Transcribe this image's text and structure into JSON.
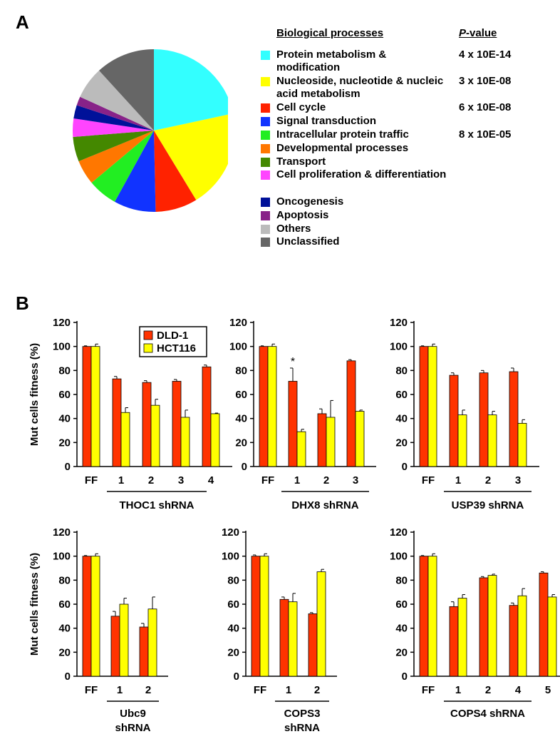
{
  "panel_labels": {
    "a": "A",
    "b": "B"
  },
  "colors": {
    "dld1": "#ff3300",
    "hct116": "#ffff00",
    "axis": "#000000"
  },
  "legend": {
    "header_process": "Biological processes",
    "header_pvalue_italic": "P",
    "header_pvalue_rest": "-value",
    "items": [
      {
        "label": "Protein metabolism & modification",
        "pvalue": "4 x 10E-14",
        "color": "#33ffff"
      },
      {
        "label": "Nucleoside, nucleotide & nucleic acid metabolism",
        "pvalue": "3 x 10E-08",
        "color": "#ffff00"
      },
      {
        "label": "Cell cycle",
        "pvalue": "6 x 10E-08",
        "color": "#ff2200"
      },
      {
        "label": "Signal transduction",
        "pvalue": "",
        "color": "#1133ff"
      },
      {
        "label": "Intracellular protein traffic",
        "pvalue": "8 x 10E-05",
        "color": "#22ee22"
      },
      {
        "label": "Developmental processes",
        "pvalue": "",
        "color": "#ff7700"
      },
      {
        "label": "Transport",
        "pvalue": "",
        "color": "#448800"
      },
      {
        "label": "Cell proliferation & differentiation",
        "pvalue": "",
        "color": "#ff44ff"
      },
      {
        "label": "Oncogenesis",
        "pvalue": "",
        "color": "#001199"
      },
      {
        "label": "Apoptosis",
        "pvalue": "",
        "color": "#882288"
      },
      {
        "label": "Others",
        "pvalue": "",
        "color": "#bbbbbb"
      },
      {
        "label": "Unclassified",
        "pvalue": "",
        "color": "#666666"
      }
    ]
  },
  "bar_legend": {
    "dld1": "DLD-1",
    "hct116": "HCT116"
  },
  "chart_data": [
    {
      "type": "pie",
      "categories": [
        "Protein metabolism & modification",
        "Nucleoside, nucleotide & nucleic acid metabolism",
        "Cell cycle",
        "Signal transduction",
        "Intracellular protein traffic",
        "Developmental processes",
        "Transport",
        "Cell proliferation & differentiation",
        "Oncogenesis",
        "Apoptosis",
        "Others",
        "Unclassified"
      ],
      "values": [
        22,
        20,
        8.5,
        8.5,
        6,
        5,
        5,
        3.7,
        2.7,
        1.8,
        6.5,
        12
      ]
    },
    {
      "type": "bar",
      "ylabel": "Mut cells fitness (%)",
      "ylim": [
        0,
        120
      ],
      "yticks": [
        0,
        20,
        40,
        60,
        80,
        100,
        120
      ],
      "legend_position": "top-left",
      "categories": [
        "FF",
        "1",
        "2",
        "3",
        "4"
      ],
      "group_label": "THOC1 shRNA",
      "series": [
        {
          "name": "DLD-1",
          "values": [
            100,
            73,
            70,
            71,
            83
          ],
          "errors": [
            0.5,
            2,
            1.5,
            1.5,
            1.5
          ]
        },
        {
          "name": "HCT116",
          "values": [
            100,
            45,
            51,
            41,
            44
          ],
          "errors": [
            2,
            4,
            5,
            6,
            0.5
          ]
        }
      ]
    },
    {
      "type": "bar",
      "ylim": [
        0,
        120
      ],
      "yticks": [
        0,
        20,
        40,
        60,
        80,
        100,
        120
      ],
      "categories": [
        "FF",
        "1",
        "2",
        "3"
      ],
      "group_label": "DHX8 shRNA",
      "annotations": [
        {
          "category": "1",
          "text": "*"
        }
      ],
      "series": [
        {
          "name": "DLD-1",
          "values": [
            100,
            71,
            44,
            88
          ],
          "errors": [
            0.5,
            11,
            4,
            1
          ]
        },
        {
          "name": "HCT116",
          "values": [
            100,
            29,
            41,
            46
          ],
          "errors": [
            2,
            2,
            14,
            1
          ]
        }
      ]
    },
    {
      "type": "bar",
      "ylim": [
        0,
        120
      ],
      "yticks": [
        0,
        20,
        40,
        60,
        80,
        100,
        120
      ],
      "categories": [
        "FF",
        "1",
        "2",
        "3"
      ],
      "group_label": "USP39 shRNA",
      "series": [
        {
          "name": "DLD-1",
          "values": [
            100,
            76,
            78,
            79
          ],
          "errors": [
            0.5,
            2,
            2,
            3
          ]
        },
        {
          "name": "HCT116",
          "values": [
            100,
            43,
            43,
            36
          ],
          "errors": [
            2,
            4,
            3,
            3
          ]
        }
      ]
    },
    {
      "type": "bar",
      "ylabel": "Mut cells fitness (%)",
      "ylim": [
        0,
        120
      ],
      "yticks": [
        0,
        20,
        40,
        60,
        80,
        100,
        120
      ],
      "categories": [
        "FF",
        "1",
        "2"
      ],
      "group_label": [
        "Ubc9",
        "shRNA"
      ],
      "series": [
        {
          "name": "DLD-1",
          "values": [
            100,
            50,
            41
          ],
          "errors": [
            0.5,
            4,
            3
          ]
        },
        {
          "name": "HCT116",
          "values": [
            100,
            60,
            56
          ],
          "errors": [
            2,
            5,
            10
          ]
        }
      ]
    },
    {
      "type": "bar",
      "ylim": [
        0,
        120
      ],
      "yticks": [
        0,
        20,
        40,
        60,
        80,
        100,
        120
      ],
      "categories": [
        "FF",
        "1",
        "2"
      ],
      "group_label": [
        "COPS3",
        "shRNA"
      ],
      "series": [
        {
          "name": "DLD-1",
          "values": [
            100,
            64,
            52
          ],
          "errors": [
            1,
            2,
            1
          ]
        },
        {
          "name": "HCT116",
          "values": [
            100,
            62,
            87
          ],
          "errors": [
            2,
            7,
            2
          ]
        }
      ]
    },
    {
      "type": "bar",
      "ylim": [
        0,
        120
      ],
      "yticks": [
        0,
        20,
        40,
        60,
        80,
        100,
        120
      ],
      "categories": [
        "FF",
        "1",
        "2",
        "4",
        "5"
      ],
      "group_label": "COPS4 shRNA",
      "series": [
        {
          "name": "DLD-1",
          "values": [
            100,
            58,
            82,
            59,
            86
          ],
          "errors": [
            0.5,
            4,
            1,
            2,
            1
          ]
        },
        {
          "name": "HCT116",
          "values": [
            100,
            65,
            84,
            67,
            66
          ],
          "errors": [
            2,
            3,
            1,
            6,
            2
          ]
        }
      ]
    }
  ]
}
